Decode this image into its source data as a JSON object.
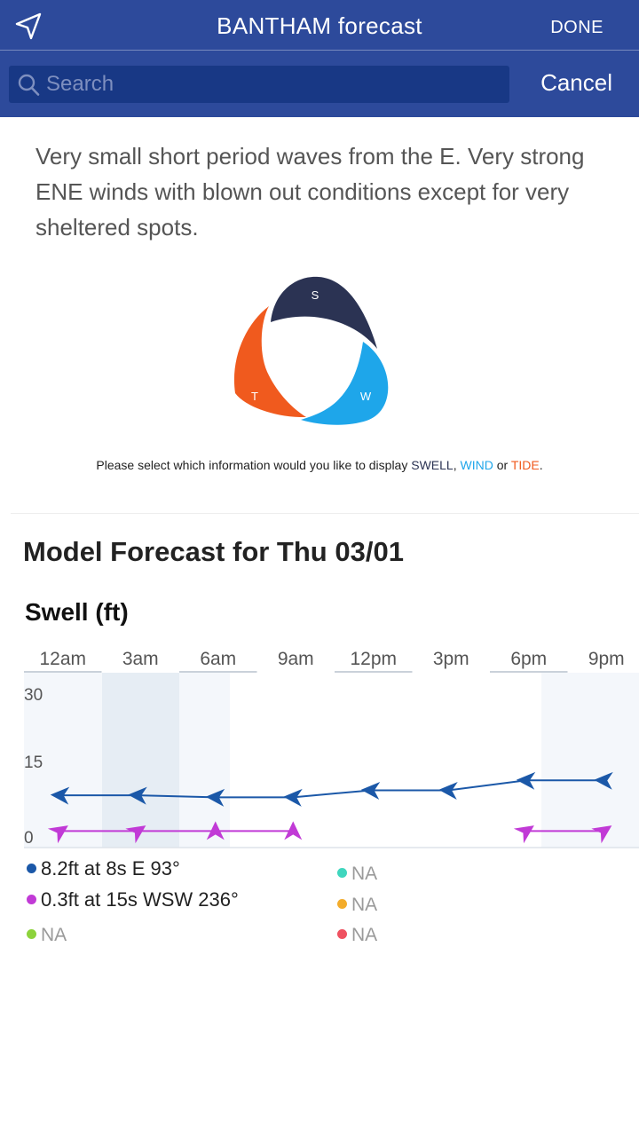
{
  "header": {
    "title": "BANTHAM forecast",
    "done_label": "DONE",
    "location_icon": "location-arrow-icon"
  },
  "search": {
    "placeholder": "Search",
    "value": "",
    "cancel_label": "Cancel",
    "icon": "search-icon"
  },
  "summary": "Very small short period waves from the E. Very strong ENE winds with blown out conditions except for very sheltered spots.",
  "selector": {
    "swell_letter": "S",
    "wind_letter": "W",
    "tide_letter": "T",
    "colors": {
      "swell": "#2b3353",
      "wind": "#1ea6ea",
      "tide": "#f05a1e"
    }
  },
  "hint": {
    "prefix": "Please select which information would you like to display ",
    "swell": "SWELL",
    "sep1": ", ",
    "wind": "WIND",
    "sep2": " or ",
    "tide": "TIDE",
    "suffix": "."
  },
  "model_title": "Model Forecast for Thu 03/01",
  "swell_title": "Swell (ft)",
  "chart_data": {
    "type": "line",
    "categories": [
      "12am",
      "3am",
      "6am",
      "9am",
      "12pm",
      "3pm",
      "6pm",
      "9pm"
    ],
    "yticks": [
      30,
      15,
      0
    ],
    "ylim": [
      0,
      30
    ],
    "grid": false,
    "series": [
      {
        "color": "#1b58a8",
        "values": [
          8.2,
          8.2,
          7.8,
          7.8,
          9.2,
          9.2,
          11.2,
          11.2
        ],
        "direction_deg": [
          93,
          93,
          93,
          93,
          93,
          93,
          93,
          93
        ]
      },
      {
        "color": "#c13ad6",
        "values": [
          0.3,
          0.3,
          0.3,
          0.3,
          null,
          null,
          0.3,
          0.3
        ],
        "direction_deg": [
          236,
          236,
          180,
          180,
          null,
          null,
          236,
          236
        ]
      }
    ]
  },
  "legend": [
    {
      "text": "8.2ft at 8s E 93°",
      "color": "#1b58a8"
    },
    {
      "text": "0.3ft at 15s WSW 236°",
      "color": "#c13ad6"
    },
    {
      "text": "NA",
      "color": "#8dd33c"
    },
    {
      "text": "NA",
      "color": "#3fd6be"
    },
    {
      "text": "NA",
      "color": "#f3ac2b"
    },
    {
      "text": "NA",
      "color": "#ef5160"
    }
  ]
}
